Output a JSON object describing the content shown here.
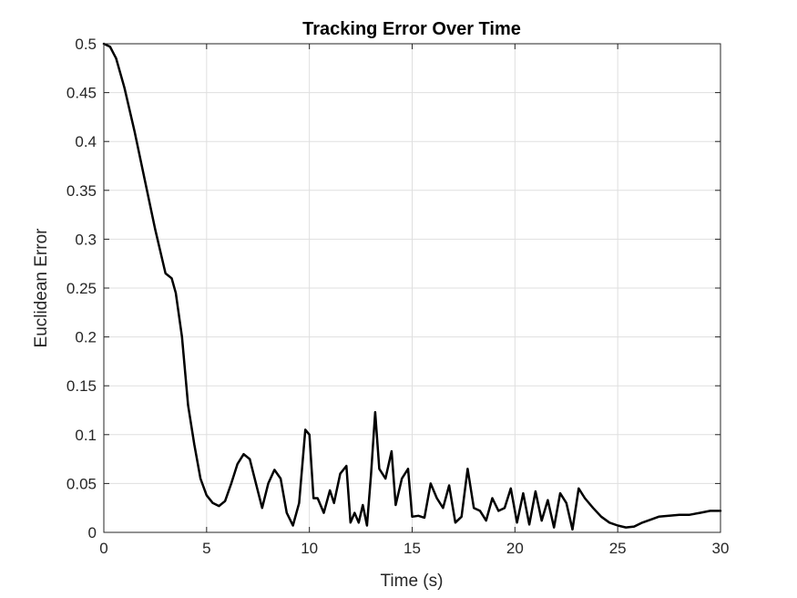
{
  "chart_data": {
    "type": "line",
    "title": "Tracking Error Over Time",
    "xlabel": "Time (s)",
    "ylabel": "Euclidean Error",
    "xlim": [
      0,
      30
    ],
    "ylim": [
      0,
      0.5
    ],
    "xticks": [
      0,
      5,
      10,
      15,
      20,
      25,
      30
    ],
    "yticks": [
      0,
      0.05,
      0.1,
      0.15,
      0.2,
      0.25,
      0.3,
      0.35,
      0.4,
      0.45,
      0.5
    ],
    "xtick_labels": [
      "0",
      "5",
      "10",
      "15",
      "20",
      "25",
      "30"
    ],
    "ytick_labels": [
      "0",
      "0.05",
      "0.1",
      "0.15",
      "0.2",
      "0.25",
      "0.3",
      "0.35",
      "0.4",
      "0.45",
      "0.5"
    ],
    "grid": true,
    "line_color": "#000000",
    "series": [
      {
        "x": [
          0,
          0.3,
          0.6,
          1.0,
          1.5,
          2.0,
          2.5,
          3.0,
          3.3,
          3.5,
          3.8,
          4.1,
          4.4,
          4.7,
          5.0,
          5.3,
          5.6,
          5.9,
          6.2,
          6.5,
          6.8,
          7.1,
          7.4,
          7.7,
          8.0,
          8.3,
          8.6,
          8.9,
          9.2,
          9.5,
          9.8,
          10.0,
          10.2,
          10.4,
          10.7,
          11.0,
          11.2,
          11.5,
          11.8,
          12.0,
          12.2,
          12.4,
          12.6,
          12.8,
          13.0,
          13.2,
          13.4,
          13.7,
          14.0,
          14.2,
          14.5,
          14.8,
          15.0,
          15.3,
          15.6,
          15.9,
          16.2,
          16.5,
          16.8,
          17.1,
          17.4,
          17.7,
          18.0,
          18.3,
          18.6,
          18.9,
          19.2,
          19.5,
          19.8,
          20.1,
          20.4,
          20.7,
          21.0,
          21.3,
          21.6,
          21.9,
          22.2,
          22.5,
          22.8,
          23.1,
          23.4,
          23.8,
          24.2,
          24.6,
          25.0,
          25.4,
          25.8,
          26.2,
          26.6,
          27.0,
          27.5,
          28.0,
          28.5,
          29.0,
          29.5,
          30.0
        ],
        "y": [
          0.5,
          0.497,
          0.485,
          0.455,
          0.41,
          0.36,
          0.31,
          0.265,
          0.26,
          0.245,
          0.2,
          0.13,
          0.09,
          0.055,
          0.038,
          0.03,
          0.027,
          0.032,
          0.05,
          0.07,
          0.08,
          0.075,
          0.05,
          0.025,
          0.05,
          0.064,
          0.055,
          0.02,
          0.007,
          0.03,
          0.105,
          0.1,
          0.035,
          0.035,
          0.02,
          0.043,
          0.03,
          0.06,
          0.068,
          0.01,
          0.02,
          0.01,
          0.028,
          0.007,
          0.06,
          0.123,
          0.065,
          0.055,
          0.083,
          0.028,
          0.055,
          0.065,
          0.016,
          0.017,
          0.015,
          0.05,
          0.035,
          0.025,
          0.048,
          0.01,
          0.016,
          0.065,
          0.025,
          0.022,
          0.012,
          0.035,
          0.022,
          0.025,
          0.045,
          0.01,
          0.04,
          0.008,
          0.042,
          0.012,
          0.033,
          0.005,
          0.04,
          0.03,
          0.003,
          0.045,
          0.035,
          0.025,
          0.016,
          0.01,
          0.007,
          0.005,
          0.006,
          0.01,
          0.013,
          0.016,
          0.017,
          0.018,
          0.018,
          0.02,
          0.022,
          0.022
        ]
      }
    ]
  }
}
